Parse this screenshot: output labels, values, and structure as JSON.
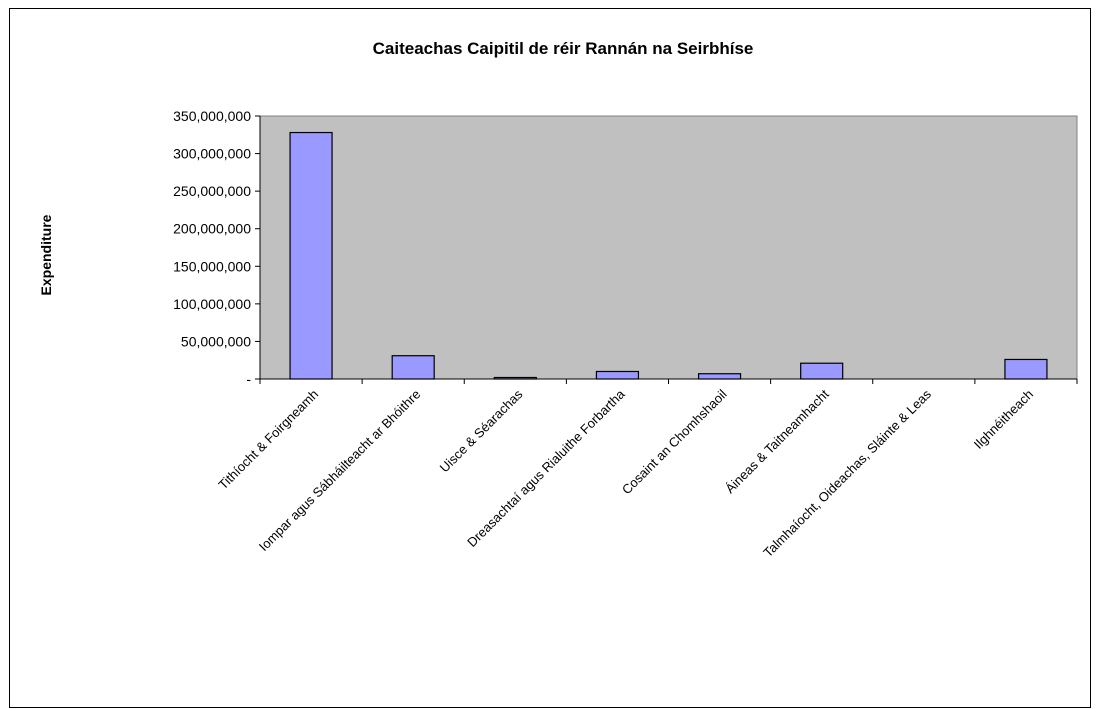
{
  "chart_data": {
    "type": "bar",
    "title": "Caiteachas Caipitil de réir Rannán na Seirbhíse",
    "xlabel": "",
    "ylabel": "Expenditure",
    "categories": [
      "Tithíocht & Foirgneamh",
      "Iompar agus Sábháilteacht ar Bhóithre",
      "Uisce & Séarachas",
      "Dreasachtaí agus Rialuithe Forbartha",
      "Cosaint an Chomhshaoil",
      "Áineas & Taitneamhacht",
      "Talmhaíocht, Oideachas, Sláinte & Leas",
      "Ilghnéitheach"
    ],
    "values": [
      328000000,
      31000000,
      2000000,
      10000000,
      7000000,
      21000000,
      0,
      26000000
    ],
    "ylim": [
      0,
      350000000
    ],
    "yticks": [
      {
        "value": 0,
        "label": "-"
      },
      {
        "value": 50000000,
        "label": "50,000,000"
      },
      {
        "value": 100000000,
        "label": "100,000,000"
      },
      {
        "value": 150000000,
        "label": "150,000,000"
      },
      {
        "value": 200000000,
        "label": "200,000,000"
      },
      {
        "value": 250000000,
        "label": "250,000,000"
      },
      {
        "value": 300000000,
        "label": "300,000,000"
      },
      {
        "value": 350000000,
        "label": "350,000,000"
      }
    ],
    "grid": false,
    "legend": "none",
    "colors": {
      "bar_fill": "#9999ff",
      "bar_stroke": "#000000",
      "plot_bg": "#c0c0c0"
    }
  }
}
